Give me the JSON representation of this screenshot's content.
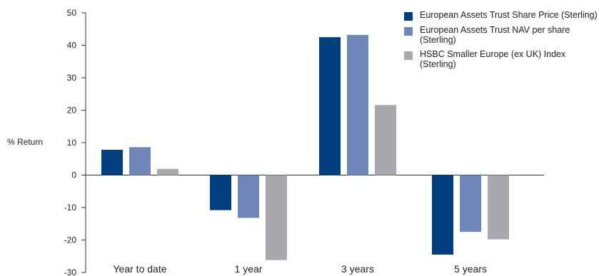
{
  "chart_data": {
    "type": "bar",
    "ylabel": "% Return",
    "xlabel": "",
    "title": "",
    "ylim": [
      -30,
      50
    ],
    "yticks": [
      50,
      40,
      30,
      20,
      10,
      0,
      -10,
      -20,
      -30
    ],
    "categories": [
      "Year to date",
      "1 year",
      "3 years",
      "5 years"
    ],
    "series": [
      {
        "name": "European Assets Trust Share Price (Sterling)",
        "color": "#003e7e",
        "values": [
          7.8,
          -10.8,
          42.5,
          -24.5
        ]
      },
      {
        "name": "European Assets Trust NAV per share (Sterling)",
        "color": "#6f87b8",
        "values": [
          8.6,
          -13.2,
          43.2,
          -17.5
        ]
      },
      {
        "name": "HSBC Smaller Europe (ex UK) Index (Sterling)",
        "color": "#a7a9ac",
        "values": [
          1.9,
          -26.2,
          21.6,
          -19.8
        ]
      }
    ],
    "legend_position": "top-right",
    "grid": false
  }
}
